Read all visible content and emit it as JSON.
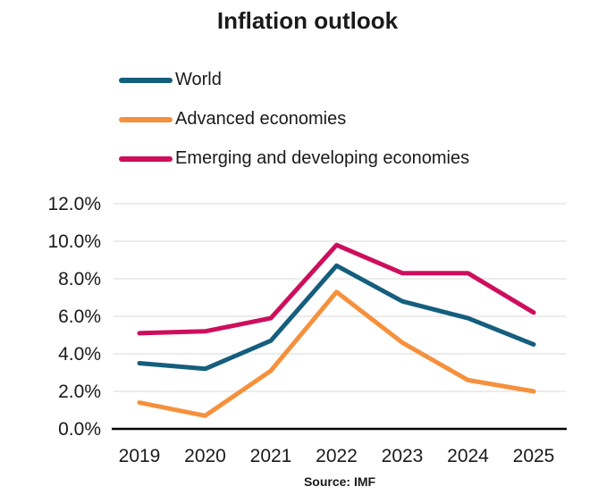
{
  "chart_data": {
    "type": "line",
    "title": "Inflation outlook",
    "source": "Source: IMF",
    "categories": [
      "2019",
      "2020",
      "2021",
      "2022",
      "2023",
      "2024",
      "2025"
    ],
    "series": [
      {
        "name": "World",
        "color": "#155E7D",
        "values": [
          3.5,
          3.2,
          4.7,
          8.7,
          6.8,
          5.9,
          4.5
        ]
      },
      {
        "name": "Advanced economies",
        "color": "#F5913D",
        "values": [
          1.4,
          0.7,
          3.1,
          7.3,
          4.6,
          2.6,
          2.0
        ]
      },
      {
        "name": "Emerging and developing economies",
        "color": "#CE0E5C",
        "values": [
          5.1,
          5.2,
          5.9,
          9.8,
          8.3,
          8.3,
          6.2
        ]
      }
    ],
    "ylim": [
      0,
      12
    ],
    "y_ticks": [
      {
        "value": 0,
        "label": "0.0%"
      },
      {
        "value": 2,
        "label": "2.0%"
      },
      {
        "value": 4,
        "label": "4.0%"
      },
      {
        "value": 6,
        "label": "6.0%"
      },
      {
        "value": 8,
        "label": "8.0%"
      },
      {
        "value": 10,
        "label": "10.0%"
      },
      {
        "value": 12,
        "label": "12.0%"
      }
    ],
    "grid": true,
    "legend_position": "top-left",
    "xlabel": "",
    "ylabel": ""
  },
  "colors": {
    "grid": "#D9D9D9",
    "axis": "#000000",
    "text": "#1A1A1A"
  }
}
